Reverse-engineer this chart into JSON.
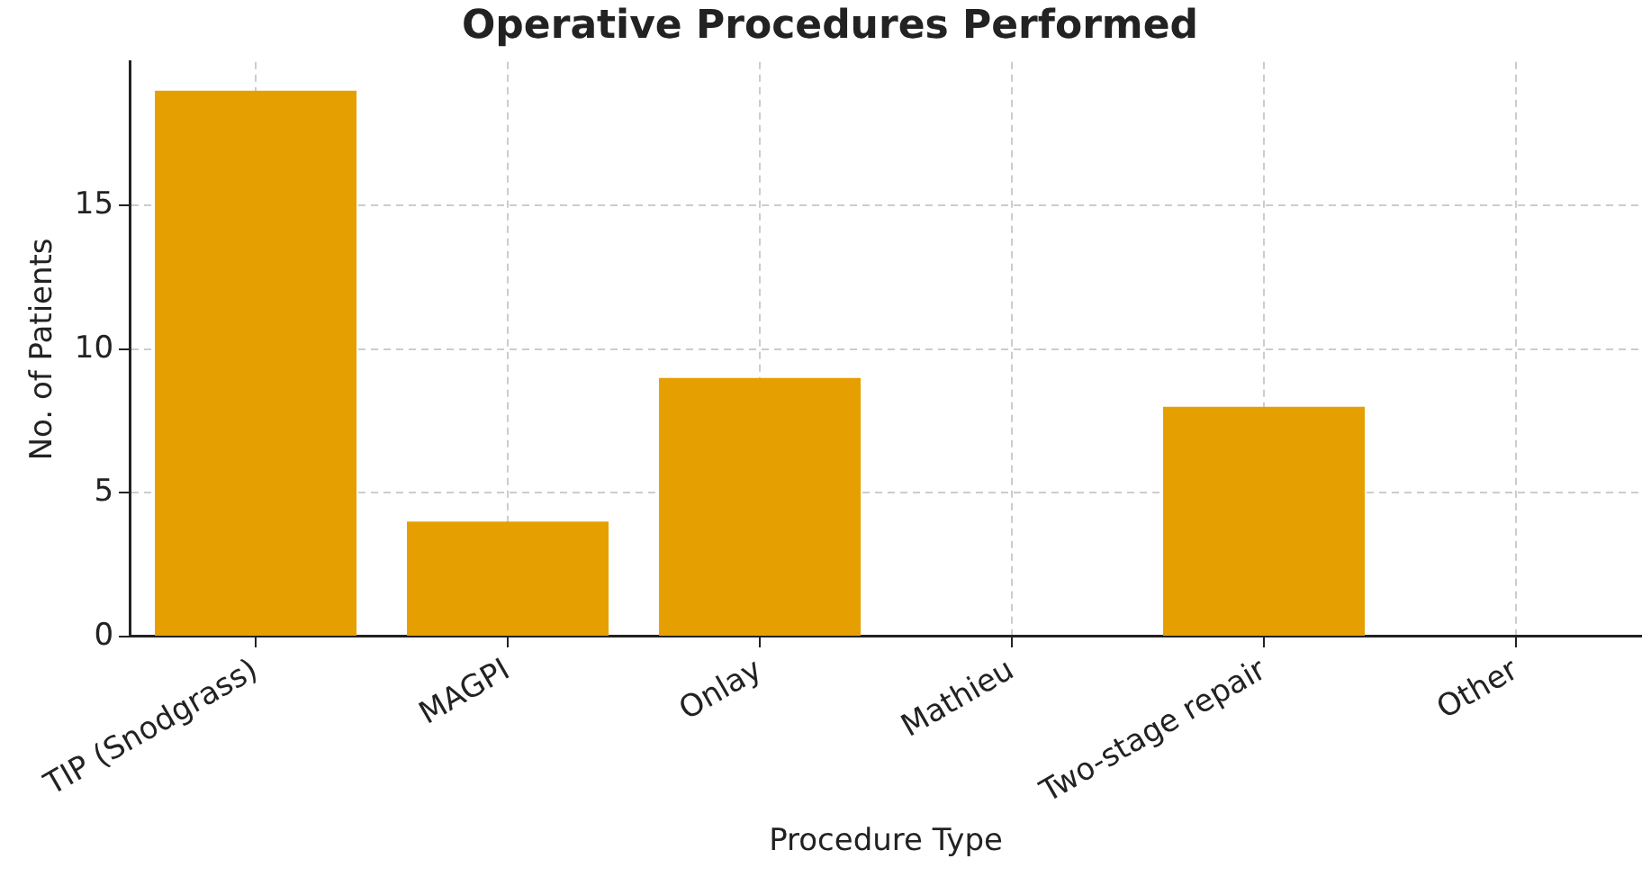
{
  "chart_data": {
    "type": "bar",
    "title": "Operative Procedures Performed",
    "xlabel": "Procedure Type",
    "ylabel": "No. of Patients",
    "categories": [
      "TIP (Snodgrass)",
      "MAGPI",
      "Onlay",
      "Mathieu",
      "Two-stage repair",
      "Other"
    ],
    "values": [
      19,
      4,
      9,
      0,
      8,
      0
    ],
    "color": "#e69f00",
    "ylim": [
      0,
      20
    ],
    "yticks": [
      0,
      5,
      10,
      15
    ],
    "grid": true
  }
}
